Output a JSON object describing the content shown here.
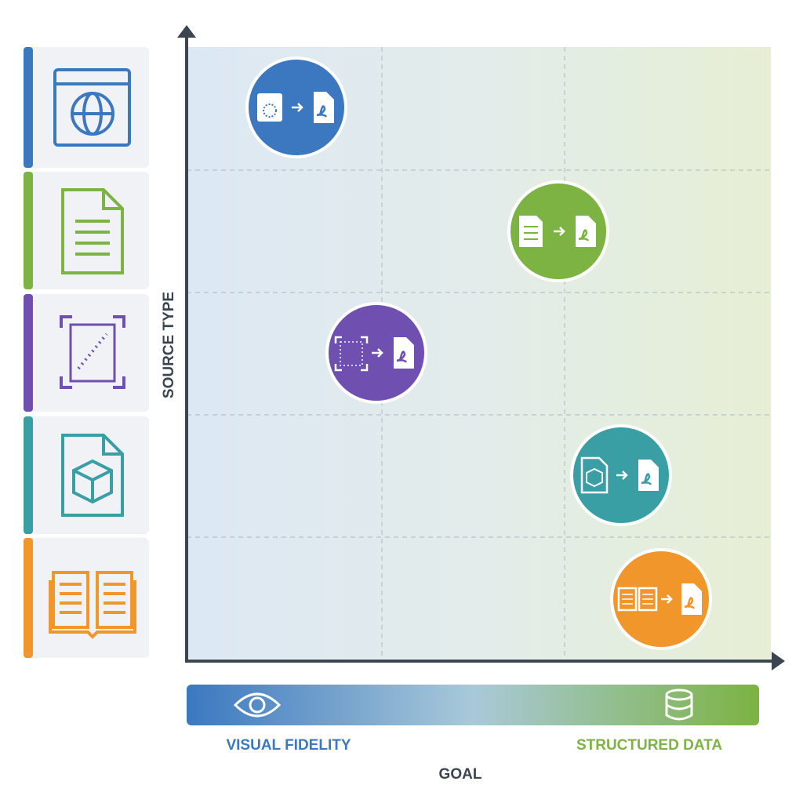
{
  "axes": {
    "y_label": "SOURCE TYPE",
    "x_label": "GOAL",
    "x_left": "VISUAL FIDELITY",
    "x_right": "STRUCTURED DATA"
  }
}
